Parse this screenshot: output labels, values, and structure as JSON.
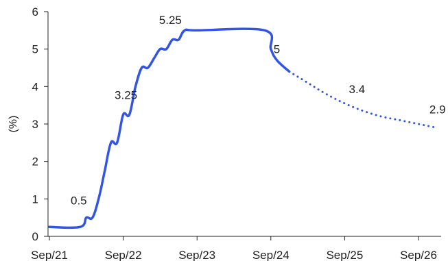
{
  "chart_data": {
    "type": "line",
    "title": "",
    "xlabel": "",
    "ylabel": "(%)",
    "ylim": [
      0,
      6
    ],
    "yticks": [
      "0",
      "1",
      "2",
      "3",
      "4",
      "5",
      "6"
    ],
    "xlim": [
      "2021-09",
      "2027-01"
    ],
    "xticks": [
      {
        "label": "Sep/21",
        "date": "2021-09"
      },
      {
        "label": "Sep/22",
        "date": "2022-09"
      },
      {
        "label": "Sep/23",
        "date": "2023-09"
      },
      {
        "label": "Sep/24",
        "date": "2024-09"
      },
      {
        "label": "Sep/25",
        "date": "2025-09"
      },
      {
        "label": "Sep/26",
        "date": "2026-09"
      }
    ],
    "grid": false,
    "legend": "none",
    "line_color": "#3355e6",
    "series": [
      {
        "style": "solid",
        "points": [
          [
            "2021-09",
            0.25
          ],
          [
            "2022-02",
            0.25
          ],
          [
            "2022-03",
            0.5
          ],
          [
            "2022-04",
            0.5
          ],
          [
            "2022-05",
            1.0
          ],
          [
            "2022-06",
            1.75
          ],
          [
            "2022-07",
            2.5
          ],
          [
            "2022-08",
            2.5
          ],
          [
            "2022-09",
            3.25
          ],
          [
            "2022-10",
            3.25
          ],
          [
            "2022-11",
            4.0
          ],
          [
            "2022-12",
            4.5
          ],
          [
            "2023-01",
            4.5
          ],
          [
            "2023-02",
            4.75
          ],
          [
            "2023-03",
            5.0
          ],
          [
            "2023-04",
            5.0
          ],
          [
            "2023-05",
            5.25
          ],
          [
            "2023-06",
            5.25
          ],
          [
            "2023-07",
            5.5
          ],
          [
            "2023-09",
            5.5
          ],
          [
            "2024-08",
            5.5
          ],
          [
            "2024-09",
            5.0
          ],
          [
            "2024-10",
            4.7
          ],
          [
            "2024-12",
            4.4
          ]
        ]
      },
      {
        "style": "dotted",
        "points": [
          [
            "2024-12",
            4.4
          ],
          [
            "2025-03",
            4.1
          ],
          [
            "2025-06",
            3.8
          ],
          [
            "2025-09",
            3.55
          ],
          [
            "2025-12",
            3.35
          ],
          [
            "2026-03",
            3.2
          ],
          [
            "2026-06",
            3.1
          ],
          [
            "2026-09",
            3.0
          ],
          [
            "2026-12",
            2.9
          ]
        ]
      }
    ],
    "annotations": [
      {
        "text": "0.5",
        "x": "2022-02",
        "y": 0.5
      },
      {
        "text": "3.25",
        "x": "2022-09",
        "y": 3.25
      },
      {
        "text": "5.25",
        "x": "2023-05",
        "y": 5.25
      },
      {
        "text": "5",
        "x": "2024-09",
        "y": 5.0
      },
      {
        "text": "3.4",
        "x": "2025-11",
        "y": 3.4
      },
      {
        "text": "2.9",
        "x": "2026-12",
        "y": 2.9
      }
    ]
  }
}
